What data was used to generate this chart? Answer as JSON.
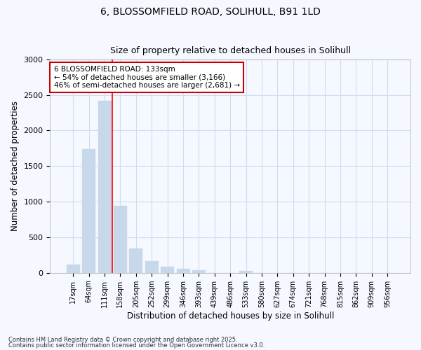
{
  "title1": "6, BLOSSOMFIELD ROAD, SOLIHULL, B91 1LD",
  "title2": "Size of property relative to detached houses in Solihull",
  "xlabel": "Distribution of detached houses by size in Solihull",
  "ylabel": "Number of detached properties",
  "bar_color": "#c8d8eb",
  "bar_edge_color": "#c8d8eb",
  "background_color": "#f5f8ff",
  "grid_color": "#d0dcf0",
  "categories": [
    "17sqm",
    "64sqm",
    "111sqm",
    "158sqm",
    "205sqm",
    "252sqm",
    "299sqm",
    "346sqm",
    "393sqm",
    "439sqm",
    "486sqm",
    "533sqm",
    "580sqm",
    "627sqm",
    "674sqm",
    "721sqm",
    "768sqm",
    "815sqm",
    "862sqm",
    "909sqm",
    "956sqm"
  ],
  "values": [
    120,
    1740,
    2420,
    940,
    340,
    160,
    90,
    60,
    40,
    0,
    0,
    30,
    0,
    0,
    0,
    0,
    0,
    0,
    0,
    0,
    0
  ],
  "red_line_index": 2.5,
  "annotation_line1": "6 BLOSSOMFIELD ROAD: 133sqm",
  "annotation_line2": "← 54% of detached houses are smaller (3,166)",
  "annotation_line3": "46% of semi-detached houses are larger (2,681) →",
  "annotation_box_color": "#ffffff",
  "annotation_edge_color": "#cc0000",
  "ylim": [
    0,
    3000
  ],
  "yticks": [
    0,
    500,
    1000,
    1500,
    2000,
    2500,
    3000
  ],
  "footnote1": "Contains HM Land Registry data © Crown copyright and database right 2025.",
  "footnote2": "Contains public sector information licensed under the Open Government Licence v3.0."
}
